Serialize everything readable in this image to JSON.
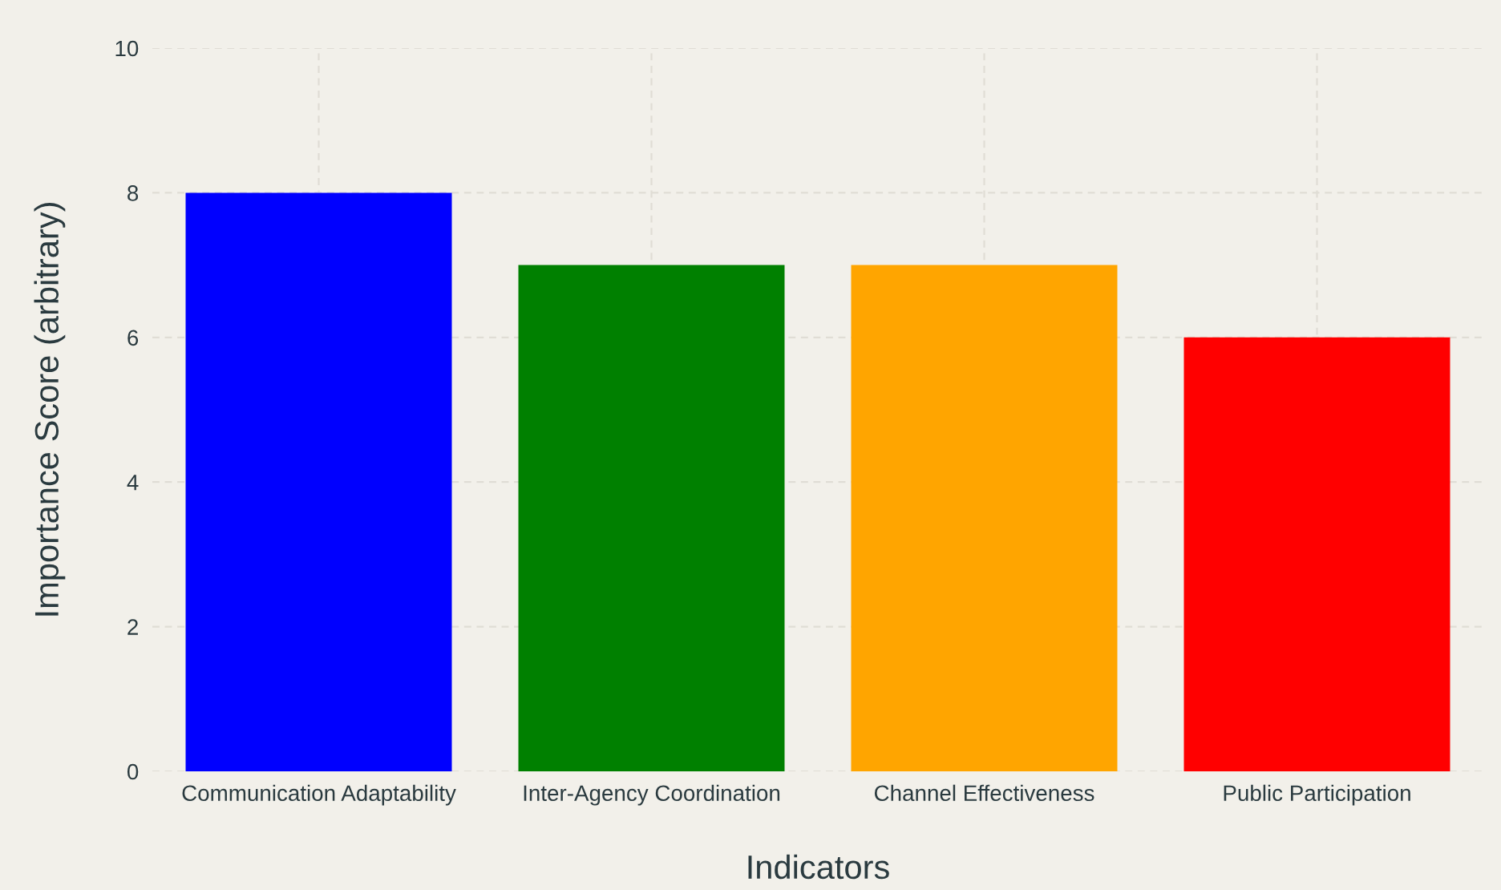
{
  "chart_data": {
    "type": "bar",
    "xlabel": "Indicators",
    "ylabel": "Importance Score (arbitrary)",
    "categories": [
      "Communication Adaptability",
      "Inter-Agency Coordination",
      "Channel Effectiveness",
      "Public Participation"
    ],
    "values": [
      8,
      7,
      7,
      6
    ],
    "colors": [
      "#0000ff",
      "#008000",
      "#ffa500",
      "#ff0000"
    ],
    "ylim": [
      0,
      10
    ],
    "yticks": [
      0,
      2,
      4,
      6,
      8,
      10
    ],
    "grid": true
  }
}
